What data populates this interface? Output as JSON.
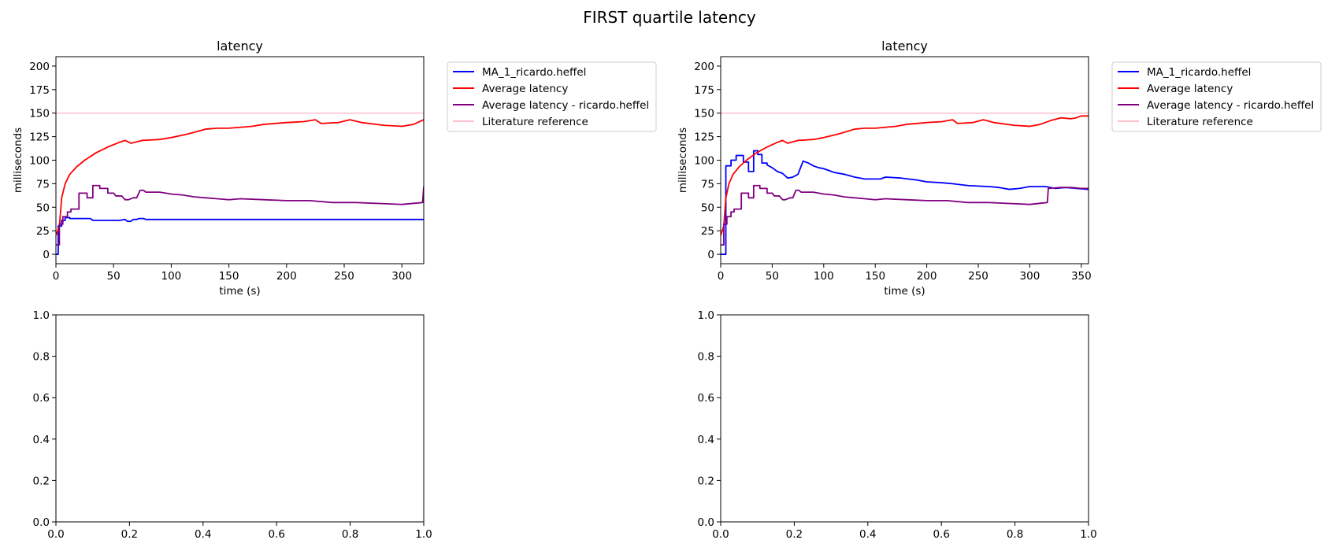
{
  "figure": {
    "title": "FIRST quartile latency"
  },
  "chart_data": [
    {
      "type": "line",
      "title": "latency",
      "xlabel": "time (s)",
      "ylabel": "milliseconds",
      "xlim": [
        0,
        319
      ],
      "ylim": [
        -10,
        210
      ],
      "xticks": [
        0,
        50,
        100,
        150,
        200,
        250,
        300
      ],
      "yticks": [
        0,
        25,
        50,
        75,
        100,
        125,
        150,
        175,
        200
      ],
      "legend_position": "outside-upper-right",
      "reference_line": {
        "label": "Literature reference",
        "value": 150,
        "color": "#ffc0cb"
      },
      "series": [
        {
          "name": "MA_1_ricardo.heffel",
          "color": "#0000ff",
          "points": [
            [
              0,
              0
            ],
            [
              2,
              0
            ],
            [
              2,
              30
            ],
            [
              5,
              30
            ],
            [
              5,
              36
            ],
            [
              8,
              36
            ],
            [
              8,
              39
            ],
            [
              12,
              39
            ],
            [
              12,
              38
            ],
            [
              30,
              38
            ],
            [
              32,
              36
            ],
            [
              55,
              36
            ],
            [
              60,
              37
            ],
            [
              62,
              35
            ],
            [
              65,
              35
            ],
            [
              67,
              37
            ],
            [
              70,
              37
            ],
            [
              72,
              38
            ],
            [
              76,
              38
            ],
            [
              78,
              37
            ],
            [
              319,
              37
            ]
          ]
        },
        {
          "name": "Average latency",
          "color": "#ff0000",
          "points": [
            [
              0,
              20
            ],
            [
              3,
              30
            ],
            [
              5,
              60
            ],
            [
              8,
              75
            ],
            [
              12,
              85
            ],
            [
              18,
              93
            ],
            [
              25,
              100
            ],
            [
              35,
              108
            ],
            [
              45,
              114
            ],
            [
              55,
              119
            ],
            [
              60,
              121
            ],
            [
              65,
              118
            ],
            [
              75,
              121
            ],
            [
              90,
              122
            ],
            [
              100,
              124
            ],
            [
              115,
              128
            ],
            [
              130,
              133
            ],
            [
              140,
              134
            ],
            [
              150,
              134
            ],
            [
              170,
              136
            ],
            [
              180,
              138
            ],
            [
              200,
              140
            ],
            [
              215,
              141
            ],
            [
              225,
              143
            ],
            [
              230,
              139
            ],
            [
              245,
              140
            ],
            [
              255,
              143
            ],
            [
              265,
              140
            ],
            [
              285,
              137
            ],
            [
              300,
              136
            ],
            [
              310,
              138
            ],
            [
              319,
              143
            ]
          ]
        },
        {
          "name": "Average latency - ricardo.heffel",
          "color": "#800080",
          "points": [
            [
              0,
              10
            ],
            [
              3,
              10
            ],
            [
              3,
              32
            ],
            [
              6,
              32
            ],
            [
              6,
              40
            ],
            [
              10,
              40
            ],
            [
              10,
              45
            ],
            [
              13,
              45
            ],
            [
              13,
              48
            ],
            [
              20,
              48
            ],
            [
              20,
              65
            ],
            [
              27,
              65
            ],
            [
              27,
              60
            ],
            [
              32,
              60
            ],
            [
              32,
              73
            ],
            [
              38,
              73
            ],
            [
              38,
              70
            ],
            [
              45,
              70
            ],
            [
              45,
              65
            ],
            [
              50,
              65
            ],
            [
              52,
              62
            ],
            [
              57,
              62
            ],
            [
              60,
              58
            ],
            [
              63,
              58
            ],
            [
              67,
              60
            ],
            [
              70,
              60
            ],
            [
              73,
              68
            ],
            [
              76,
              68
            ],
            [
              78,
              66
            ],
            [
              90,
              66
            ],
            [
              100,
              64
            ],
            [
              110,
              63
            ],
            [
              120,
              61
            ],
            [
              130,
              60
            ],
            [
              140,
              59
            ],
            [
              150,
              58
            ],
            [
              160,
              59
            ],
            [
              180,
              58
            ],
            [
              200,
              57
            ],
            [
              220,
              57
            ],
            [
              240,
              55
            ],
            [
              260,
              55
            ],
            [
              280,
              54
            ],
            [
              300,
              53
            ],
            [
              318,
              55
            ],
            [
              319,
              72
            ]
          ]
        }
      ]
    },
    {
      "type": "line",
      "title": "latency",
      "xlabel": "time (s)",
      "ylabel": "milliseconds",
      "xlim": [
        0,
        357
      ],
      "ylim": [
        -10,
        210
      ],
      "xticks": [
        0,
        50,
        100,
        150,
        200,
        250,
        300,
        350
      ],
      "yticks": [
        0,
        25,
        50,
        75,
        100,
        125,
        150,
        175,
        200
      ],
      "legend_position": "outside-upper-right",
      "reference_line": {
        "label": "Literature reference",
        "value": 150,
        "color": "#ffc0cb"
      },
      "series": [
        {
          "name": "MA_1_ricardo.heffel",
          "color": "#0000ff",
          "points": [
            [
              0,
              0
            ],
            [
              5,
              0
            ],
            [
              5,
              94
            ],
            [
              10,
              94
            ],
            [
              10,
              100
            ],
            [
              15,
              100
            ],
            [
              15,
              105
            ],
            [
              22,
              105
            ],
            [
              22,
              98
            ],
            [
              27,
              98
            ],
            [
              27,
              88
            ],
            [
              32,
              88
            ],
            [
              32,
              110
            ],
            [
              36,
              110
            ],
            [
              36,
              106
            ],
            [
              40,
              106
            ],
            [
              40,
              97
            ],
            [
              45,
              97
            ],
            [
              45,
              95
            ],
            [
              50,
              92
            ],
            [
              55,
              88
            ],
            [
              60,
              86
            ],
            [
              65,
              81
            ],
            [
              70,
              82
            ],
            [
              75,
              85
            ],
            [
              80,
              99
            ],
            [
              85,
              97
            ],
            [
              90,
              94
            ],
            [
              95,
              92
            ],
            [
              100,
              91
            ],
            [
              105,
              89
            ],
            [
              110,
              87
            ],
            [
              120,
              85
            ],
            [
              130,
              82
            ],
            [
              140,
              80
            ],
            [
              155,
              80
            ],
            [
              160,
              82
            ],
            [
              175,
              81
            ],
            [
              190,
              79
            ],
            [
              200,
              77
            ],
            [
              215,
              76
            ],
            [
              225,
              75
            ],
            [
              240,
              73
            ],
            [
              260,
              72
            ],
            [
              270,
              71
            ],
            [
              280,
              69
            ],
            [
              290,
              70
            ],
            [
              300,
              72
            ],
            [
              315,
              72
            ],
            [
              325,
              70
            ],
            [
              335,
              71
            ],
            [
              345,
              70
            ],
            [
              357,
              69
            ]
          ]
        },
        {
          "name": "Average latency",
          "color": "#ff0000",
          "points": [
            [
              0,
              20
            ],
            [
              3,
              30
            ],
            [
              5,
              60
            ],
            [
              8,
              75
            ],
            [
              12,
              85
            ],
            [
              18,
              93
            ],
            [
              25,
              100
            ],
            [
              35,
              108
            ],
            [
              45,
              114
            ],
            [
              55,
              119
            ],
            [
              60,
              121
            ],
            [
              65,
              118
            ],
            [
              75,
              121
            ],
            [
              90,
              122
            ],
            [
              100,
              124
            ],
            [
              115,
              128
            ],
            [
              130,
              133
            ],
            [
              140,
              134
            ],
            [
              150,
              134
            ],
            [
              170,
              136
            ],
            [
              180,
              138
            ],
            [
              200,
              140
            ],
            [
              215,
              141
            ],
            [
              225,
              143
            ],
            [
              230,
              139
            ],
            [
              245,
              140
            ],
            [
              255,
              143
            ],
            [
              265,
              140
            ],
            [
              285,
              137
            ],
            [
              300,
              136
            ],
            [
              310,
              138
            ],
            [
              320,
              142
            ],
            [
              330,
              145
            ],
            [
              340,
              144
            ],
            [
              345,
              145
            ],
            [
              350,
              147
            ],
            [
              357,
              147
            ]
          ]
        },
        {
          "name": "Average latency - ricardo.heffel",
          "color": "#800080",
          "points": [
            [
              0,
              10
            ],
            [
              3,
              10
            ],
            [
              3,
              32
            ],
            [
              6,
              32
            ],
            [
              6,
              40
            ],
            [
              10,
              40
            ],
            [
              10,
              45
            ],
            [
              13,
              45
            ],
            [
              13,
              48
            ],
            [
              20,
              48
            ],
            [
              20,
              65
            ],
            [
              27,
              65
            ],
            [
              27,
              60
            ],
            [
              32,
              60
            ],
            [
              32,
              73
            ],
            [
              38,
              73
            ],
            [
              38,
              70
            ],
            [
              45,
              70
            ],
            [
              45,
              65
            ],
            [
              50,
              65
            ],
            [
              52,
              62
            ],
            [
              57,
              62
            ],
            [
              60,
              58
            ],
            [
              63,
              58
            ],
            [
              67,
              60
            ],
            [
              70,
              60
            ],
            [
              73,
              68
            ],
            [
              76,
              68
            ],
            [
              78,
              66
            ],
            [
              90,
              66
            ],
            [
              100,
              64
            ],
            [
              110,
              63
            ],
            [
              120,
              61
            ],
            [
              130,
              60
            ],
            [
              140,
              59
            ],
            [
              150,
              58
            ],
            [
              160,
              59
            ],
            [
              180,
              58
            ],
            [
              200,
              57
            ],
            [
              220,
              57
            ],
            [
              240,
              55
            ],
            [
              260,
              55
            ],
            [
              280,
              54
            ],
            [
              300,
              53
            ],
            [
              317,
              55
            ],
            [
              318,
              70
            ],
            [
              330,
              71
            ],
            [
              340,
              71
            ],
            [
              350,
              70
            ],
            [
              357,
              70
            ]
          ]
        }
      ]
    },
    {
      "type": "line",
      "title": "",
      "xlim": [
        0,
        1
      ],
      "ylim": [
        0,
        1
      ],
      "xticks": [
        0.0,
        0.2,
        0.4,
        0.6,
        0.8,
        1.0
      ],
      "yticks": [
        0.0,
        0.2,
        0.4,
        0.6,
        0.8,
        1.0
      ],
      "series": []
    },
    {
      "type": "line",
      "title": "",
      "xlim": [
        0,
        1
      ],
      "ylim": [
        0,
        1
      ],
      "xticks": [
        0.0,
        0.2,
        0.4,
        0.6,
        0.8,
        1.0
      ],
      "yticks": [
        0.0,
        0.2,
        0.4,
        0.6,
        0.8,
        1.0
      ],
      "series": []
    }
  ]
}
